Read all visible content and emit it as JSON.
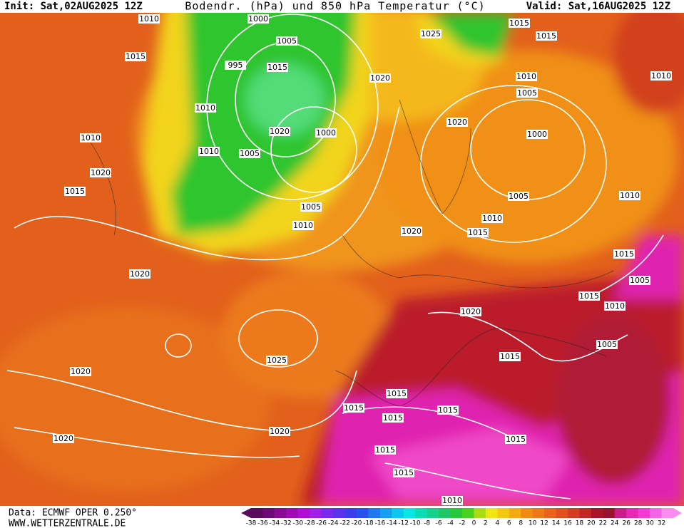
{
  "header": {
    "init": "Init: Sat,02AUG2025 12Z",
    "title": "Bodendr. (hPa) und 850 hPa Temperatur (°C)",
    "valid": "Valid: Sat,16AUG2025 12Z"
  },
  "footer": {
    "source": "Data: ECMWF OPER 0.250°",
    "website": "WWW.WETTERZENTRALE.DE"
  },
  "colorbar": {
    "ticks": [
      -38,
      -36,
      -34,
      -32,
      -30,
      -28,
      -26,
      -24,
      -22,
      -20,
      -18,
      -16,
      -14,
      -12,
      -10,
      -8,
      -6,
      -4,
      -2,
      0,
      2,
      4,
      6,
      8,
      10,
      12,
      14,
      16,
      18,
      20,
      22,
      24,
      26,
      28,
      30,
      32
    ],
    "colors": [
      "#5a0a5a",
      "#6e0a78",
      "#8a0a96",
      "#a00ab4",
      "#b40ad2",
      "#a01ee6",
      "#7828f0",
      "#5a32f0",
      "#3c3cf0",
      "#2850f0",
      "#1e78f0",
      "#14a0f0",
      "#0ac8f0",
      "#0ae6e6",
      "#0adcb4",
      "#14d28c",
      "#1ec864",
      "#28c83c",
      "#46d21e",
      "#aadc14",
      "#f0e614",
      "#f5c814",
      "#f5aa14",
      "#f08c14",
      "#ec7818",
      "#e8641c",
      "#e0501e",
      "#d23c20",
      "#c02826",
      "#aa142a",
      "#96142e",
      "#c81e8c",
      "#e628b4",
      "#f03cd2",
      "#f564e6",
      "#fa8cf0"
    ]
  },
  "isobar_labels": [
    "1010",
    "1000",
    "1005",
    "995",
    "1015",
    "1015",
    "1010",
    "1020",
    "1000",
    "1010",
    "1005",
    "1010",
    "1020",
    "1015",
    "1005",
    "1010",
    "1020",
    "1020",
    "1015",
    "1010",
    "1005",
    "1000",
    "1020",
    "1010",
    "1005",
    "1025",
    "1015",
    "1015",
    "1020",
    "1010",
    "1010",
    "1015",
    "1005",
    "1015",
    "1010",
    "1005",
    "1020",
    "1015",
    "1025",
    "1020",
    "1015",
    "1015",
    "1015",
    "1015",
    "1015",
    "1015",
    "1015",
    "1020",
    "1020",
    "1010"
  ]
}
